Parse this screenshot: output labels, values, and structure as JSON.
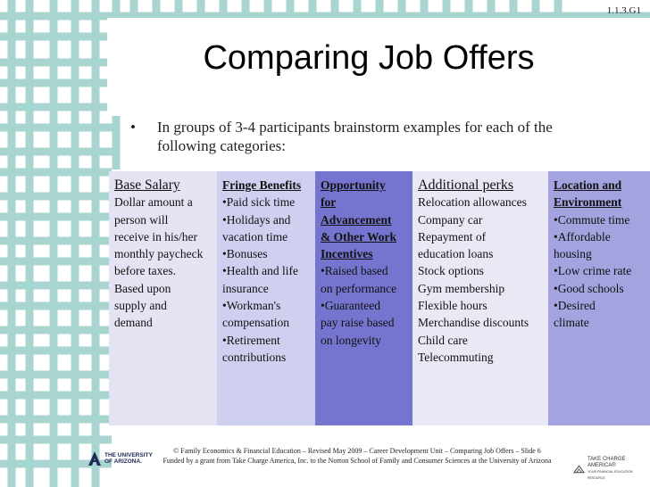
{
  "slide_code": "1.1.3.G1",
  "title": "Comparing Job Offers",
  "bullet": "In groups of 3-4 participants brainstorm examples for each of the following categories:",
  "columns": [
    {
      "heading": "Base Salary",
      "lines": [
        "Dollar amount a",
        "person will",
        "receive in his/her",
        "monthly paycheck",
        "before taxes.",
        "Based upon",
        "supply and",
        "demand"
      ]
    },
    {
      "heading": "Fringe Benefits",
      "lines": [
        "•Paid sick time",
        "•Holidays and",
        "vacation time",
        "•Bonuses",
        "•Health and life",
        "insurance",
        "•Workman's",
        "compensation",
        "•Retirement",
        "contributions"
      ]
    },
    {
      "heading_lines": [
        "Opportunity",
        "for",
        "Advancement",
        "& Other Work",
        "Incentives"
      ],
      "lines": [
        "•Raised based",
        "on performance",
        "•Guaranteed",
        "pay raise based",
        "on longevity"
      ]
    },
    {
      "heading": "Additional perks",
      "lines": [
        "Relocation allowances",
        "Company car",
        "Repayment of",
        "education loans",
        "Stock options",
        "Gym membership",
        "Flexible hours",
        "Merchandise discounts",
        "Child care",
        "Telecommuting"
      ]
    },
    {
      "heading_lines": [
        "Location and",
        "Environment"
      ],
      "lines": [
        "•Commute time",
        "•Affordable",
        "housing",
        "•Low crime rate",
        "•Good schools",
        "•Desired",
        "climate"
      ]
    }
  ],
  "footer": {
    "line1": "© Family Economics & Financial Education – Revised May 2009 – Career Development Unit – Comparing Job Offers – Slide 6",
    "line2": "Funded by a grant from Take Charge America, Inc. to the Norton School of Family and Consumer Sciences at the University of Arizona"
  },
  "logos": {
    "ua_line1": "THE UNIVERSITY",
    "ua_line2": "OF ARIZONA.",
    "tc_line1": "TAKE CHARGE AMERICA®",
    "tc_line2": "YOUR FINANCIAL EDUCATION RESOURCE"
  },
  "colors": {
    "lattice": "#a9d5d1"
  }
}
